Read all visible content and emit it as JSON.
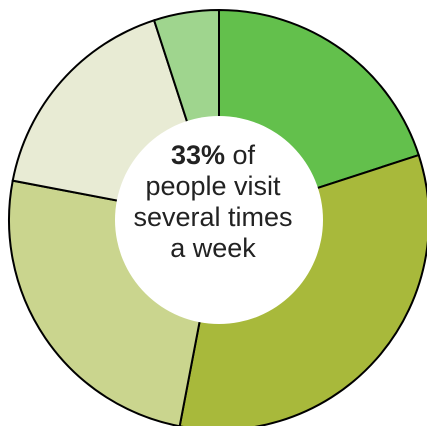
{
  "chart_data": {
    "type": "pie",
    "donut": true,
    "start_angle_deg": 0,
    "direction": "clockwise",
    "slices": [
      {
        "value": 20,
        "color": "#63c04c"
      },
      {
        "value": 33,
        "color": "#a8b93b"
      },
      {
        "value": 25,
        "color": "#cad58e"
      },
      {
        "value": 17,
        "color": "#e8ebd4"
      },
      {
        "value": 5,
        "color": "#9fd58e"
      }
    ],
    "center_label": {
      "value": "33%",
      "lines": [
        "of",
        "people visit",
        "several times",
        "a week"
      ]
    },
    "legend": "none"
  }
}
